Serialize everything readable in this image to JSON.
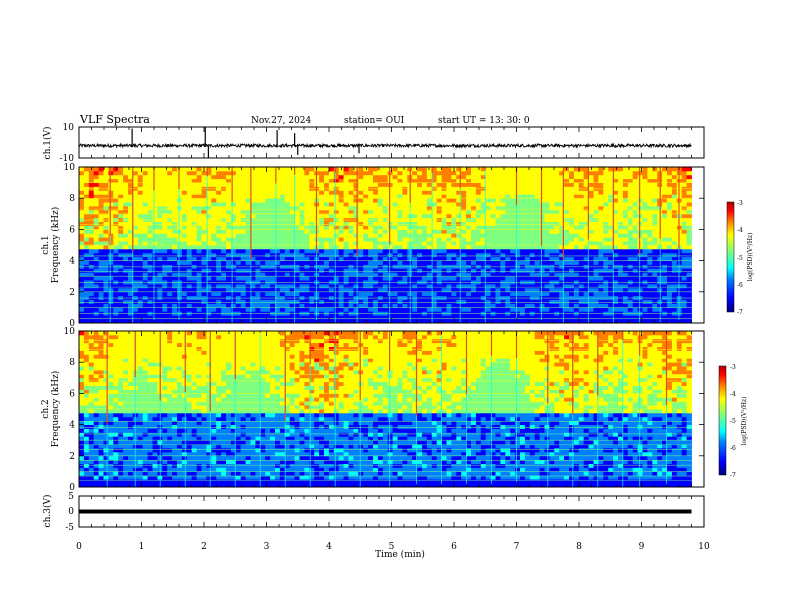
{
  "header": {
    "title": "VLF Spectra",
    "date": "Nov.27, 2024",
    "station": "station= OUI",
    "start": "start  UT =   13: 30: 0"
  },
  "colors": {
    "background": "#ffffff",
    "axis": "#000000",
    "signal_trace": "#000000",
    "colormap": [
      "#00007f",
      "#0000ff",
      "#007fff",
      "#00ffff",
      "#7fff7f",
      "#ffff00",
      "#ff7f00",
      "#ff0000",
      "#7f0000"
    ]
  },
  "chart_data": [
    {
      "type": "line",
      "name": "ch1-waveform",
      "ylabel": "ch.1(V)",
      "xlim": [
        0,
        10
      ],
      "ylim": [
        -10,
        10
      ],
      "yticks": [
        "10",
        "-10"
      ],
      "baseline": -2,
      "noise_amplitude": 1,
      "spikes": [
        {
          "t": 0.85,
          "v": 9
        },
        {
          "t": 2.02,
          "v": 10
        },
        {
          "t": 2.07,
          "v": -10
        },
        {
          "t": 3.17,
          "v": 8
        },
        {
          "t": 3.45,
          "v": 6
        },
        {
          "t": 3.5,
          "v": -8
        },
        {
          "t": 4.48,
          "v": -7
        }
      ],
      "data_end_min": 9.8
    },
    {
      "type": "heatmap",
      "name": "ch1-spectrogram",
      "ylabel_top": "ch.1",
      "ylabel": "Frequency (kHz)",
      "xlim": [
        0,
        10
      ],
      "ylim": [
        0,
        10
      ],
      "yticks": [
        "0",
        "2",
        "4",
        "6",
        "8",
        "10"
      ],
      "data_end_min": 9.8,
      "colorbar": {
        "label": "log(PSD)(V²/Hz)",
        "range": [
          -7,
          -3
        ],
        "ticks": [
          "-3",
          "-4",
          "-5",
          "-6",
          "-7"
        ]
      },
      "line_frequencies_khz": [
        0.3,
        0.6,
        1.0,
        1.3,
        1.6,
        2.0,
        2.3,
        2.6,
        3.0,
        3.3,
        3.6,
        4.0,
        4.3,
        5.0,
        6.0,
        6.3,
        6.6,
        7.0,
        7.3,
        8.0,
        8.6,
        9.0
      ],
      "impulse_times_min": [
        0.5,
        0.86,
        1.2,
        1.6,
        2.05,
        2.45,
        2.75,
        3.15,
        3.45,
        3.8,
        4.1,
        4.45,
        4.97,
        5.3,
        5.65,
        6.1,
        6.5,
        7.0,
        7.4,
        7.75,
        8.15,
        8.55,
        8.97,
        9.3,
        9.6
      ]
    },
    {
      "type": "heatmap",
      "name": "ch2-spectrogram",
      "ylabel_top": "ch.2",
      "ylabel": "Frequency (kHz)",
      "xlim": [
        0,
        10
      ],
      "ylim": [
        0,
        10
      ],
      "yticks": [
        "0",
        "2",
        "4",
        "6",
        "8",
        "10"
      ],
      "data_end_min": 9.8,
      "colorbar": {
        "label": "log(PSD)(V²/Hz)",
        "range": [
          -7,
          -3
        ],
        "ticks": [
          "-3",
          "-4",
          "-5",
          "-6",
          "-7"
        ]
      },
      "line_frequencies_khz": [
        0.4,
        0.7,
        1.0,
        1.4,
        1.7,
        2.0,
        2.4,
        2.7,
        3.0,
        3.4,
        3.8,
        4.2,
        5.0,
        5.4,
        6.0,
        6.8,
        7.2,
        8.0,
        8.8,
        9.4
      ],
      "impulse_times_min": [
        0.45,
        0.9,
        1.3,
        1.7,
        2.1,
        2.5,
        2.9,
        3.3,
        3.7,
        4.1,
        4.5,
        4.97,
        5.4,
        5.8,
        6.2,
        6.6,
        7.0,
        7.5,
        7.9,
        8.3,
        8.7,
        8.97,
        9.4
      ]
    },
    {
      "type": "line",
      "name": "ch3-waveform",
      "ylabel": "ch.3(V)",
      "xlabel": "Time  (min)",
      "xlim": [
        0,
        10
      ],
      "ylim": [
        -5,
        5
      ],
      "yticks": [
        "5",
        "0",
        "-5"
      ],
      "xticks": [
        "0",
        "1",
        "2",
        "3",
        "4",
        "5",
        "6",
        "7",
        "8",
        "9",
        "10"
      ],
      "level": 0,
      "data_end_min": 9.8
    }
  ]
}
